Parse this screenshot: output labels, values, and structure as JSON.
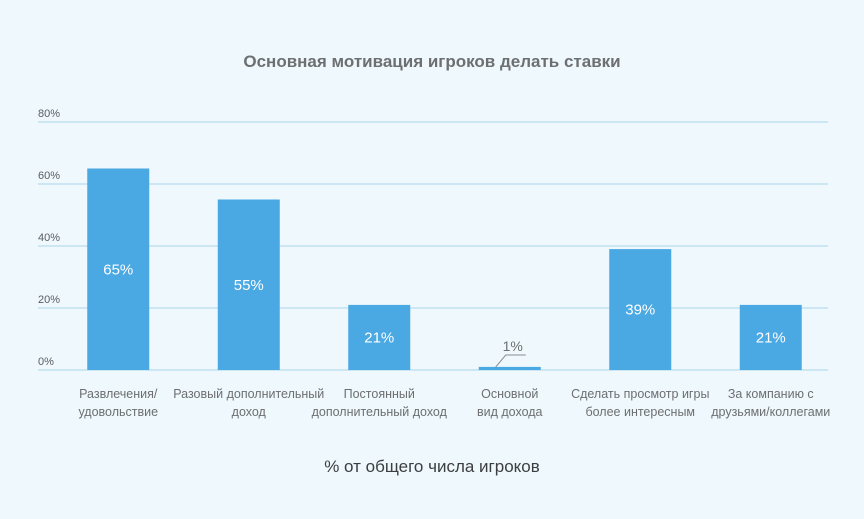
{
  "chart_data": {
    "type": "bar",
    "title": "Основная мотивация игроков делать ставки",
    "xlabel": "% от общего числа игроков",
    "ylabel": "",
    "ylim": [
      0,
      80
    ],
    "yticks": [
      "0%",
      "20%",
      "40%",
      "60%",
      "80%"
    ],
    "categories": [
      [
        "Развлечения/",
        "удовольствие"
      ],
      [
        "Разовый дополнительный",
        "доход"
      ],
      [
        "Постоянный",
        "дополнительный доход"
      ],
      [
        "Основной",
        "вид дохода"
      ],
      [
        "Сделать просмотр игры",
        "более интересным"
      ],
      [
        "За компанию с",
        "друзьями/коллегами"
      ]
    ],
    "values": [
      65,
      55,
      21,
      1,
      39,
      21
    ],
    "data_labels": [
      "65%",
      "55%",
      "21%",
      "1%",
      "39%",
      "21%"
    ],
    "grid": true,
    "bar_color": "#4aa8e3",
    "grid_color": "#a9d5ec"
  }
}
